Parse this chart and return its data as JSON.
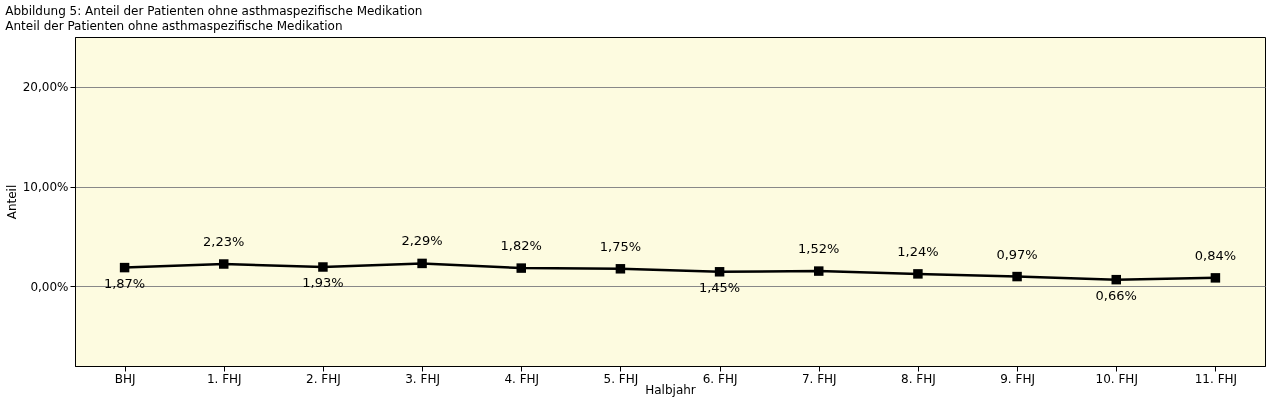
{
  "chart_data": {
    "type": "line",
    "title": "Abbildung 5: Anteil der Patienten ohne asthmaspezifische Medikation",
    "subtitle": "Anteil der Patienten ohne asthmaspezifische Medikation",
    "xlabel": "Halbjahr",
    "ylabel": "Anteil",
    "categories": [
      "BHJ",
      "1. FHJ",
      "2. FHJ",
      "3. FHJ",
      "4. FHJ",
      "5. FHJ",
      "6. FHJ",
      "7. FHJ",
      "8. FHJ",
      "9. FHJ",
      "10. FHJ",
      "11. FHJ"
    ],
    "series": [
      {
        "color": "#000000",
        "values": [
          1.87,
          2.23,
          1.93,
          2.29,
          1.82,
          1.75,
          1.45,
          1.52,
          1.24,
          0.97,
          0.66,
          0.84
        ],
        "value_labels": [
          "1,87%",
          "2,23%",
          "1,93%",
          "2,29%",
          "1,82%",
          "1,75%",
          "1,45%",
          "1,52%",
          "1,24%",
          "0,97%",
          "0,66%",
          "0,84%"
        ]
      }
    ],
    "ylim": [
      -8,
      25
    ],
    "yticks": [
      {
        "value": 0,
        "label": "0,00%"
      },
      {
        "value": 10,
        "label": "10,00%"
      },
      {
        "value": 20,
        "label": "20,00%"
      }
    ],
    "grid": "y",
    "marker": "square",
    "line_style": "solid"
  }
}
